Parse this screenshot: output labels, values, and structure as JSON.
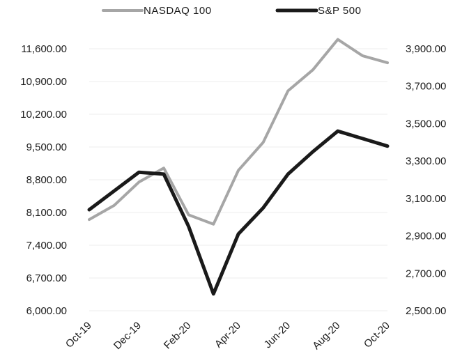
{
  "chart_data": {
    "type": "line",
    "title": "",
    "xlabel": "",
    "ylabel": "",
    "legend_position": "top",
    "x": [
      "Oct-19",
      "Nov-19",
      "Dec-19",
      "Jan-20",
      "Feb-20",
      "Mar-20",
      "Apr-20",
      "May-20",
      "Jun-20",
      "Jul-20",
      "Aug-20",
      "Sep-20",
      "Oct-20"
    ],
    "x_tick_labels": [
      "Oct-19",
      "Dec-19",
      "Feb-20",
      "Apr-20",
      "Jun-20",
      "Aug-20",
      "Oct-20"
    ],
    "left_axis": {
      "ylim": [
        6000,
        11600
      ],
      "ticks": [
        "6,000.00",
        "6,700.00",
        "7,400.00",
        "8,100.00",
        "8,800.00",
        "9,500.00",
        "10,200.00",
        "10,900.00",
        "11,600.00"
      ]
    },
    "right_axis": {
      "ylim": [
        2500,
        3900
      ],
      "ticks": [
        "2,500.00",
        "2,700.00",
        "2,900.00",
        "3,100.00",
        "3,300.00",
        "3,500.00",
        "3,700.00",
        "3,900.00"
      ]
    },
    "series": [
      {
        "name": "NASDAQ 100",
        "axis": "left",
        "color": "#a6a6a6",
        "values": [
          7950,
          8250,
          8750,
          9050,
          8050,
          7850,
          9000,
          9600,
          10700,
          11150,
          11800,
          11450,
          11300
        ]
      },
      {
        "name": "S&P 500",
        "axis": "right",
        "color": "#1a1a1a",
        "values": [
          3040,
          3140,
          3240,
          3230,
          2950,
          2590,
          2910,
          3050,
          3230,
          3350,
          3460,
          3420,
          3380
        ]
      }
    ]
  }
}
